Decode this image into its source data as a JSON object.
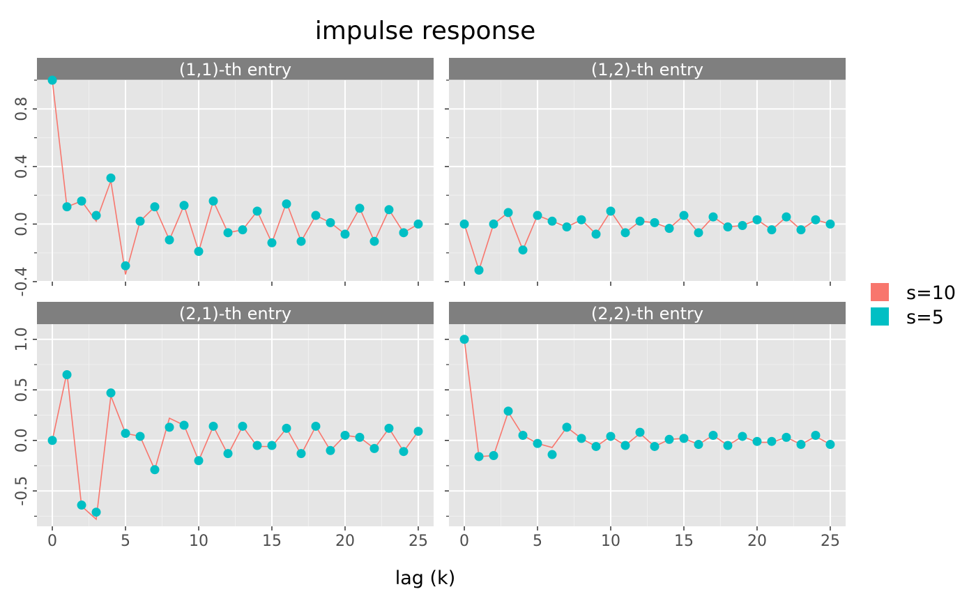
{
  "chart_data": {
    "type": "line",
    "title": "impulse response",
    "xlabel": "lag (k)",
    "ylabel": "",
    "x_ticks": [
      0,
      5,
      10,
      15,
      20,
      25
    ],
    "legend": {
      "placement": "right",
      "items": [
        {
          "label": "s=10",
          "color": "#F8766D"
        },
        {
          "label": "s=5",
          "color": "#00BFC4"
        }
      ]
    },
    "panels": [
      {
        "strip": "(1,1)-th entry",
        "ylim": [
          -0.4,
          1.0
        ],
        "y_ticks": [
          -0.4,
          0.0,
          0.4,
          0.8
        ],
        "y_tick_labels": [
          "-0.4",
          "0.0",
          "0.4",
          "0.8"
        ],
        "series": [
          {
            "name": "s=10",
            "style": "line",
            "color": "#F8766D",
            "x": [
              0,
              1,
              2,
              3,
              4,
              5,
              6,
              7,
              8,
              9,
              10,
              11,
              12,
              13,
              14,
              15,
              16,
              17,
              18,
              19,
              20,
              21,
              22,
              23,
              24,
              25
            ],
            "y": [
              1.0,
              0.12,
              0.16,
              0.02,
              0.3,
              -0.35,
              0.02,
              0.12,
              -0.11,
              0.13,
              -0.19,
              0.16,
              -0.06,
              -0.04,
              0.09,
              -0.13,
              0.15,
              -0.12,
              0.06,
              0.01,
              -0.07,
              0.11,
              -0.12,
              0.1,
              -0.06,
              0.0
            ]
          },
          {
            "name": "s=5",
            "style": "points",
            "color": "#00BFC4",
            "x": [
              0,
              1,
              2,
              3,
              4,
              5,
              6,
              7,
              8,
              9,
              10,
              11,
              12,
              13,
              14,
              15,
              16,
              17,
              18,
              19,
              20,
              21,
              22,
              23,
              24,
              25
            ],
            "y": [
              1.0,
              0.12,
              0.16,
              0.06,
              0.32,
              -0.29,
              0.02,
              0.12,
              -0.11,
              0.13,
              -0.19,
              0.16,
              -0.06,
              -0.04,
              0.09,
              -0.13,
              0.14,
              -0.12,
              0.06,
              0.01,
              -0.07,
              0.11,
              -0.12,
              0.1,
              -0.06,
              0.0
            ]
          }
        ]
      },
      {
        "strip": "(1,2)-th entry",
        "ylim": [
          -0.4,
          1.0
        ],
        "y_ticks": [
          -0.4,
          0.0,
          0.4,
          0.8
        ],
        "y_tick_labels": [
          "",
          "",
          "",
          ""
        ],
        "series": [
          {
            "name": "s=10",
            "style": "line",
            "color": "#F8766D",
            "x": [
              0,
              1,
              2,
              3,
              4,
              5,
              6,
              7,
              8,
              9,
              10,
              11,
              12,
              13,
              14,
              15,
              16,
              17,
              18,
              19,
              20,
              21,
              22,
              23,
              24,
              25
            ],
            "y": [
              0.0,
              -0.32,
              0.0,
              0.08,
              -0.18,
              0.06,
              0.02,
              -0.02,
              0.03,
              -0.07,
              0.09,
              -0.06,
              0.02,
              0.01,
              -0.03,
              0.06,
              -0.06,
              0.05,
              -0.02,
              -0.01,
              0.03,
              -0.04,
              0.05,
              -0.04,
              0.03,
              0.0
            ]
          },
          {
            "name": "s=5",
            "style": "points",
            "color": "#00BFC4",
            "x": [
              0,
              1,
              2,
              3,
              4,
              5,
              6,
              7,
              8,
              9,
              10,
              11,
              12,
              13,
              14,
              15,
              16,
              17,
              18,
              19,
              20,
              21,
              22,
              23,
              24,
              25
            ],
            "y": [
              0.0,
              -0.32,
              0.0,
              0.08,
              -0.18,
              0.06,
              0.02,
              -0.02,
              0.03,
              -0.07,
              0.09,
              -0.06,
              0.02,
              0.01,
              -0.03,
              0.06,
              -0.06,
              0.05,
              -0.02,
              -0.01,
              0.03,
              -0.04,
              0.05,
              -0.04,
              0.03,
              0.0
            ]
          }
        ]
      },
      {
        "strip": "(2,1)-th entry",
        "ylim": [
          -0.85,
          1.15
        ],
        "y_ticks": [
          -0.5,
          0.0,
          0.5,
          1.0
        ],
        "y_tick_labels": [
          "-0.5",
          "0.0",
          "0.5",
          "1.0"
        ],
        "series": [
          {
            "name": "s=10",
            "style": "line",
            "color": "#F8766D",
            "x": [
              0,
              1,
              2,
              3,
              4,
              5,
              6,
              7,
              8,
              9,
              10,
              11,
              12,
              13,
              14,
              15,
              16,
              17,
              18,
              19,
              20,
              21,
              22,
              23,
              24,
              25
            ],
            "y": [
              0.0,
              0.67,
              -0.65,
              -0.78,
              0.44,
              0.07,
              0.04,
              -0.29,
              0.22,
              0.15,
              -0.2,
              0.14,
              -0.14,
              0.14,
              -0.06,
              -0.06,
              0.12,
              -0.14,
              0.14,
              -0.1,
              0.05,
              0.03,
              -0.08,
              0.12,
              -0.11,
              0.09
            ]
          },
          {
            "name": "s=5",
            "style": "points",
            "color": "#00BFC4",
            "x": [
              0,
              1,
              2,
              3,
              4,
              5,
              6,
              7,
              8,
              9,
              10,
              11,
              12,
              13,
              14,
              15,
              16,
              17,
              18,
              19,
              20,
              21,
              22,
              23,
              24,
              25
            ],
            "y": [
              0.0,
              0.65,
              -0.64,
              -0.71,
              0.47,
              0.07,
              0.04,
              -0.29,
              0.13,
              0.15,
              -0.2,
              0.14,
              -0.13,
              0.14,
              -0.05,
              -0.05,
              0.12,
              -0.13,
              0.14,
              -0.1,
              0.05,
              0.03,
              -0.08,
              0.12,
              -0.11,
              0.09
            ]
          }
        ]
      },
      {
        "strip": "(2,2)-th entry",
        "ylim": [
          -0.85,
          1.15
        ],
        "y_ticks": [
          -0.5,
          0.0,
          0.5,
          1.0
        ],
        "y_tick_labels": [
          "",
          "",
          "",
          ""
        ],
        "series": [
          {
            "name": "s=10",
            "style": "line",
            "color": "#F8766D",
            "x": [
              0,
              1,
              2,
              3,
              4,
              5,
              6,
              7,
              8,
              9,
              10,
              11,
              12,
              13,
              14,
              15,
              16,
              17,
              18,
              19,
              20,
              21,
              22,
              23,
              24,
              25
            ],
            "y": [
              1.0,
              -0.16,
              -0.15,
              0.28,
              0.05,
              -0.03,
              -0.07,
              0.13,
              0.02,
              -0.06,
              0.04,
              -0.05,
              0.07,
              -0.06,
              0.01,
              0.02,
              -0.04,
              0.05,
              -0.05,
              0.04,
              -0.02,
              -0.02,
              0.03,
              -0.04,
              0.04,
              -0.04
            ]
          },
          {
            "name": "s=5",
            "style": "points",
            "color": "#00BFC4",
            "x": [
              0,
              1,
              2,
              3,
              4,
              5,
              6,
              7,
              8,
              9,
              10,
              11,
              12,
              13,
              14,
              15,
              16,
              17,
              18,
              19,
              20,
              21,
              22,
              23,
              24,
              25
            ],
            "y": [
              1.0,
              -0.16,
              -0.15,
              0.29,
              0.05,
              -0.03,
              -0.14,
              0.13,
              0.02,
              -0.06,
              0.04,
              -0.05,
              0.08,
              -0.06,
              0.01,
              0.02,
              -0.04,
              0.05,
              -0.05,
              0.04,
              -0.01,
              -0.01,
              0.03,
              -0.04,
              0.05,
              -0.04
            ]
          }
        ]
      }
    ]
  }
}
